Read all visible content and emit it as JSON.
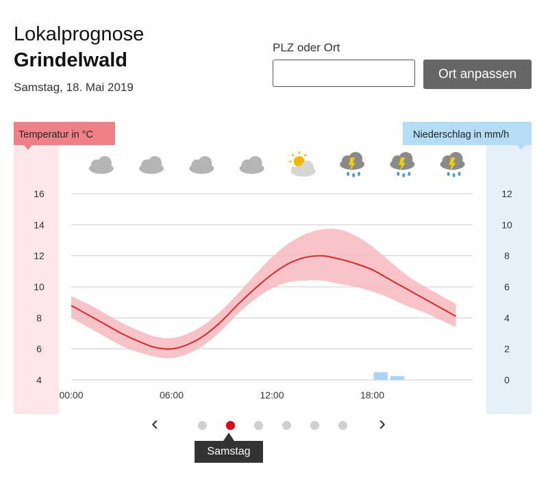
{
  "header": {
    "line1": "Lokalprognose",
    "location": "Grindelwald",
    "date": "Samstag, 18. Mai 2019"
  },
  "search": {
    "label": "PLZ oder Ort",
    "value": "",
    "placeholder": "",
    "button_label": "Ort anpassen"
  },
  "pager": {
    "prev_label": "‹",
    "next_label": "›",
    "dots_count": 6,
    "active_index": 1,
    "tooltip": "Samstag"
  },
  "colors": {
    "temperature": "#d9262e",
    "temperature_band": "#f7b9bd",
    "temperature_panel": "#fce7e8",
    "temperature_tag": "#f08088",
    "precip_panel": "#e4f1fb",
    "precip_tag": "#b5dcf6",
    "precip_bar": "#a9d4f3",
    "grid": "#cccccc"
  },
  "chart_data": {
    "type": "line",
    "title": "",
    "left_axis": {
      "label": "Temperatur in °C",
      "ticks": [
        "4",
        "6",
        "8",
        "10",
        "12",
        "14",
        "16"
      ],
      "range": [
        4,
        16
      ]
    },
    "right_axis": {
      "label": "Niederschlag in mm/h",
      "ticks": [
        "0",
        "2",
        "4",
        "6",
        "8",
        "10",
        "12"
      ],
      "range": [
        0,
        12
      ]
    },
    "x_axis": {
      "ticks": [
        "00:00",
        "06:00",
        "12:00",
        "18:00"
      ],
      "tick_hours": [
        0,
        6,
        12,
        18
      ],
      "range_hours": [
        0,
        24
      ]
    },
    "weather_icons": [
      {
        "hour": 2,
        "icon": "cloud-icon"
      },
      {
        "hour": 5,
        "icon": "cloud-icon"
      },
      {
        "hour": 8,
        "icon": "cloud-icon"
      },
      {
        "hour": 11,
        "icon": "cloud-icon"
      },
      {
        "hour": 14,
        "icon": "partly-sunny-icon"
      },
      {
        "hour": 17,
        "icon": "thunder-rain-icon"
      },
      {
        "hour": 20,
        "icon": "thunder-rain-icon"
      },
      {
        "hour": 23,
        "icon": "thunder-rain-icon"
      }
    ],
    "series": [
      {
        "name": "Temperatur",
        "x": [
          0,
          1,
          2,
          3,
          4,
          5,
          6,
          7,
          8,
          9,
          10,
          11,
          12,
          13,
          14,
          15,
          16,
          17,
          18,
          19,
          20,
          21,
          22,
          23
        ],
        "values": [
          8.8,
          8.2,
          7.6,
          7.0,
          6.5,
          6.1,
          6.0,
          6.3,
          6.9,
          7.8,
          8.9,
          9.9,
          10.8,
          11.5,
          11.9,
          12.0,
          11.8,
          11.5,
          11.1,
          10.5,
          9.9,
          9.3,
          8.7,
          8.1
        ]
      },
      {
        "name": "Temperatur min",
        "x": [
          0,
          1,
          2,
          3,
          4,
          5,
          6,
          7,
          8,
          9,
          10,
          11,
          12,
          13,
          14,
          15,
          16,
          17,
          18,
          19,
          20,
          21,
          22,
          23
        ],
        "values": [
          8.0,
          7.4,
          6.8,
          6.2,
          5.8,
          5.5,
          5.4,
          5.7,
          6.3,
          7.2,
          8.3,
          9.2,
          9.9,
          10.3,
          10.4,
          10.4,
          10.2,
          10.0,
          9.7,
          9.3,
          8.8,
          8.4,
          7.9,
          7.4
        ]
      },
      {
        "name": "Temperatur max",
        "x": [
          0,
          1,
          2,
          3,
          4,
          5,
          6,
          7,
          8,
          9,
          10,
          11,
          12,
          13,
          14,
          15,
          16,
          17,
          18,
          19,
          20,
          21,
          22,
          23
        ],
        "values": [
          9.4,
          8.9,
          8.3,
          7.7,
          7.2,
          6.8,
          6.7,
          7.0,
          7.6,
          8.5,
          9.6,
          10.8,
          11.9,
          12.8,
          13.4,
          13.7,
          13.7,
          13.3,
          12.6,
          11.7,
          10.8,
          10.1,
          9.5,
          8.9
        ]
      }
    ],
    "precipitation": [
      {
        "hour": 18,
        "value": 0.5
      },
      {
        "hour": 19,
        "value": 0.25
      }
    ]
  }
}
